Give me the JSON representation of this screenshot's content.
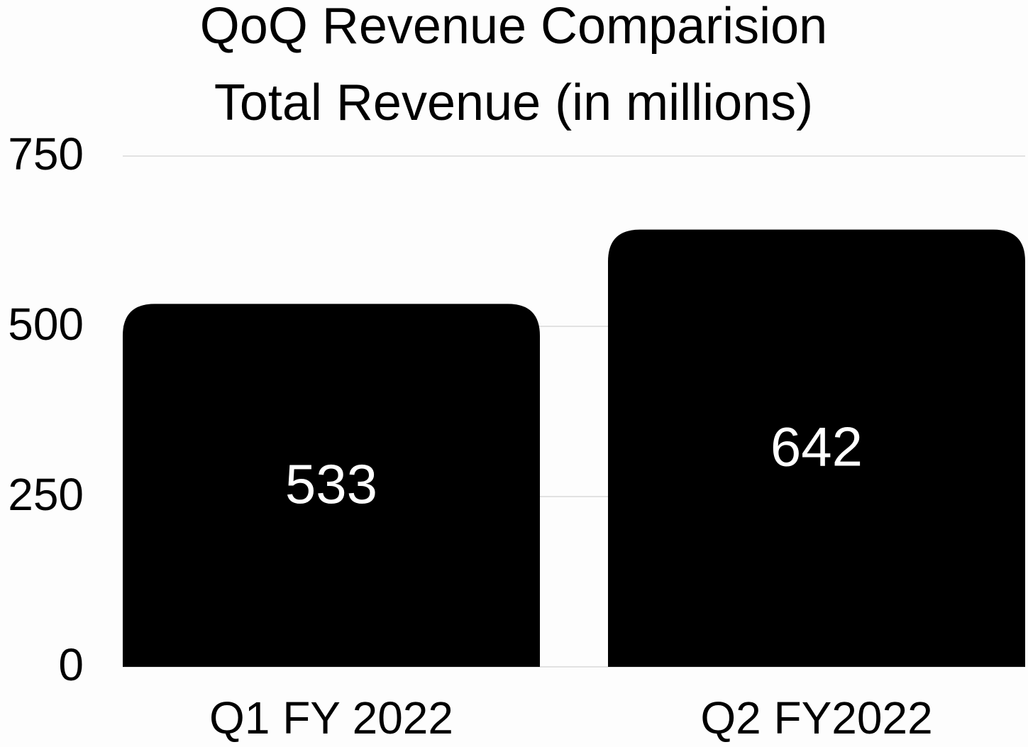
{
  "chart_data": {
    "type": "bar",
    "title": "QoQ Revenue Comparision",
    "subtitle": "Total Revenue (in millions)",
    "categories": [
      "Q1 FY 2022",
      "Q2 FY2022"
    ],
    "values": [
      533,
      642
    ],
    "color": "#000000",
    "label_color": "#ffffff",
    "ylim": [
      0,
      750
    ],
    "yticks": [
      0,
      250,
      500,
      750
    ],
    "grid": true
  }
}
